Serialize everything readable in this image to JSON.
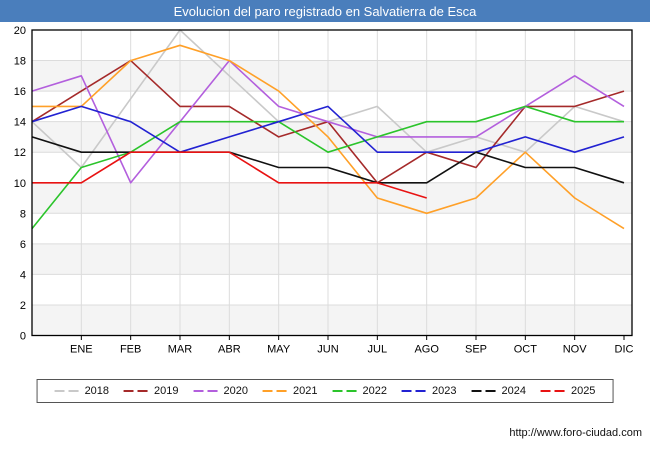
{
  "title": "Evolucion del paro registrado en Salvatierra de Esca",
  "footer_url": "http://www.foro-ciudad.com",
  "titlebar_color": "#4a7ebc",
  "chart_data": {
    "type": "line",
    "title": "Evolucion del paro registrado en Salvatierra de Esca",
    "xlabel": "",
    "ylabel": "",
    "categories": [
      "ENE",
      "FEB",
      "MAR",
      "ABR",
      "MAY",
      "JUN",
      "JUL",
      "AGO",
      "SEP",
      "OCT",
      "NOV",
      "DIC"
    ],
    "y_ticks": [
      0,
      2,
      4,
      6,
      8,
      10,
      12,
      14,
      16,
      18,
      20
    ],
    "ylim": [
      0,
      20
    ],
    "grid": true,
    "legend_position": "bottom",
    "series": [
      {
        "name": "2018",
        "color": "#c9c9c9",
        "start": 14,
        "values": [
          11,
          15.5,
          20,
          17,
          14,
          14,
          15,
          12,
          13,
          12,
          15,
          14
        ]
      },
      {
        "name": "2019",
        "color": "#a52a2a",
        "start": 14,
        "values": [
          16,
          18,
          15,
          15,
          13,
          14,
          10,
          12,
          11,
          15,
          15,
          16
        ]
      },
      {
        "name": "2020",
        "color": "#b35fdd",
        "start": 16,
        "values": [
          17,
          10,
          14,
          18,
          15,
          14,
          13,
          13,
          13,
          15,
          17,
          15
        ]
      },
      {
        "name": "2021",
        "color": "#ffa028",
        "start": 15,
        "values": [
          15,
          18,
          19,
          18,
          16,
          13,
          9,
          8,
          9,
          12,
          9,
          7
        ]
      },
      {
        "name": "2022",
        "color": "#2bc42b",
        "start": 7,
        "values": [
          11,
          12,
          14,
          14,
          14,
          12,
          13,
          14,
          14,
          15,
          14,
          14
        ]
      },
      {
        "name": "2023",
        "color": "#2222d2",
        "start": 14,
        "values": [
          15,
          14,
          12,
          13,
          14,
          15,
          12,
          12,
          12,
          13,
          12,
          13
        ]
      },
      {
        "name": "2024",
        "color": "#111111",
        "start": 13,
        "values": [
          12,
          12,
          12,
          12,
          11,
          11,
          10,
          10,
          12,
          11,
          11,
          10
        ]
      },
      {
        "name": "2025",
        "color": "#e81212",
        "start": 10,
        "values": [
          10,
          12,
          12,
          12,
          10,
          10,
          10,
          9
        ]
      }
    ]
  }
}
